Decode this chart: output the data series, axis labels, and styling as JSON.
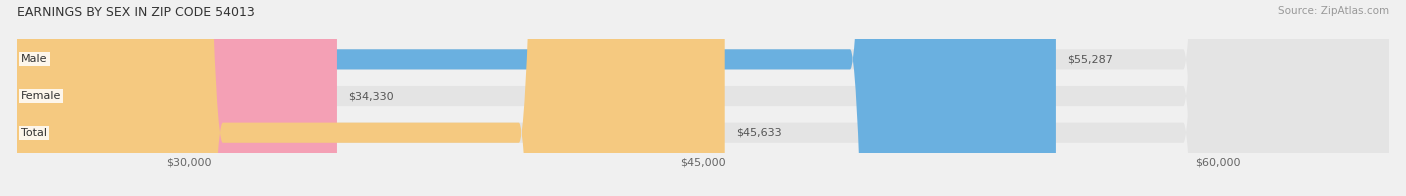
{
  "title": "EARNINGS BY SEX IN ZIP CODE 54013",
  "source": "Source: ZipAtlas.com",
  "categories": [
    "Male",
    "Female",
    "Total"
  ],
  "values": [
    55287,
    34330,
    45633
  ],
  "bar_colors": [
    "#6ab0e0",
    "#f4a0b5",
    "#f5c980"
  ],
  "bar_labels": [
    "$55,287",
    "$34,330",
    "$45,633"
  ],
  "xmin": 25000,
  "xmax": 65000,
  "xticks": [
    30000,
    45000,
    60000
  ],
  "xtick_labels": [
    "$30,000",
    "$45,000",
    "$60,000"
  ],
  "background_color": "#f0f0f0",
  "bar_bg_color": "#e4e4e4",
  "title_fontsize": 9,
  "label_fontsize": 8,
  "axis_fontsize": 8,
  "source_fontsize": 7.5
}
